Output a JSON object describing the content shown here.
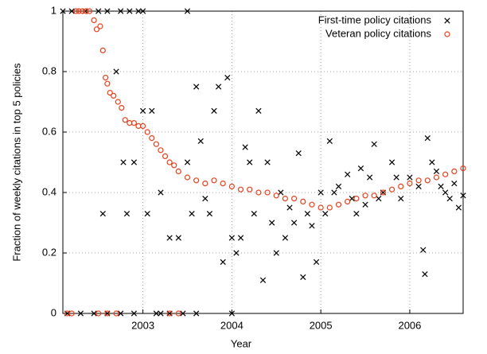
{
  "chart_data": {
    "type": "scatter",
    "x_label": "Year",
    "y_label": "Fraction of weekly citations in top 5 policies",
    "xlim": [
      2002.1,
      2006.6
    ],
    "xticks": [
      2003,
      2004,
      2005,
      2006
    ],
    "ylim": [
      0,
      1
    ],
    "yticks": [
      0,
      0.2,
      0.4,
      0.6,
      0.8,
      1
    ],
    "grid": true,
    "legend": "top-right",
    "series": [
      {
        "name": "First-time policy citations",
        "color": "#000000",
        "marker": "x",
        "x": [
          2002.1,
          2002.2,
          2002.35,
          2002.5,
          2002.6,
          2002.75,
          2002.85,
          2002.95,
          2003.0,
          2003.5,
          2002.15,
          2002.3,
          2002.45,
          2002.6,
          2002.75,
          2002.9,
          2003.15,
          2003.2,
          2003.3,
          2003.45,
          2003.6,
          2004.0,
          2002.55,
          2002.7,
          2002.78,
          2002.82,
          2002.9,
          2003.0,
          2003.05,
          2003.1,
          2003.2,
          2003.3,
          2003.4,
          2003.5,
          2003.55,
          2003.6,
          2003.65,
          2003.7,
          2003.75,
          2003.8,
          2003.85,
          2003.9,
          2003.95,
          2004.0,
          2004.05,
          2004.1,
          2004.15,
          2004.2,
          2004.25,
          2004.3,
          2004.35,
          2004.4,
          2004.45,
          2004.5,
          2004.55,
          2004.6,
          2004.65,
          2004.7,
          2004.75,
          2004.8,
          2004.85,
          2004.9,
          2004.95,
          2005.0,
          2005.05,
          2005.1,
          2005.15,
          2005.2,
          2005.3,
          2005.35,
          2005.4,
          2005.45,
          2005.5,
          2005.55,
          2005.6,
          2005.65,
          2005.7,
          2005.8,
          2005.85,
          2005.9,
          2006.0,
          2006.1,
          2006.15,
          2006.17,
          2006.2,
          2006.25,
          2006.3,
          2006.35,
          2006.4,
          2006.45,
          2006.5,
          2006.55,
          2006.6
        ],
        "values": [
          1,
          1,
          1,
          1,
          1,
          1,
          1,
          1,
          1,
          1,
          0,
          0,
          0,
          0,
          0,
          0,
          0,
          0,
          0,
          0,
          0,
          0,
          0.33,
          0.8,
          0.5,
          0.33,
          0.5,
          0.67,
          0.33,
          0.67,
          0.4,
          0.25,
          0.25,
          0.5,
          0.33,
          0.75,
          0.57,
          0.38,
          0.33,
          0.67,
          0.75,
          0.17,
          0.78,
          0.25,
          0.2,
          0.25,
          0.55,
          0.5,
          0.33,
          0.67,
          0.11,
          0.5,
          0.3,
          0.2,
          0.4,
          0.25,
          0.35,
          0.3,
          0.53,
          0.12,
          0.33,
          0.29,
          0.17,
          0.4,
          0.33,
          0.57,
          0.4,
          0.42,
          0.46,
          0.38,
          0.33,
          0.48,
          0.36,
          0.45,
          0.56,
          0.38,
          0.4,
          0.5,
          0.45,
          0.38,
          0.45,
          0.42,
          0.21,
          0.13,
          0.58,
          0.5,
          0.47,
          0.42,
          0.4,
          0.38,
          0.43,
          0.35,
          0.39
        ]
      },
      {
        "name": "Veteran policy citations",
        "color": "#e8401c",
        "marker": "circle",
        "x": [
          2002.15,
          2002.2,
          2002.5,
          2002.6,
          2002.7,
          2003.3,
          2003.4,
          2002.25,
          2002.28,
          2002.32,
          2002.36,
          2002.4,
          2002.45,
          2002.48,
          2002.52,
          2002.55,
          2002.58,
          2002.6,
          2002.63,
          2002.67,
          2002.72,
          2002.76,
          2002.8,
          2002.85,
          2002.9,
          2002.95,
          2003.0,
          2003.05,
          2003.1,
          2003.15,
          2003.2,
          2003.25,
          2003.3,
          2003.35,
          2003.4,
          2003.5,
          2003.6,
          2003.7,
          2003.8,
          2003.9,
          2004.0,
          2004.1,
          2004.2,
          2004.3,
          2004.4,
          2004.5,
          2004.6,
          2004.7,
          2004.8,
          2004.9,
          2005.0,
          2005.1,
          2005.2,
          2005.3,
          2005.4,
          2005.5,
          2005.6,
          2005.7,
          2005.8,
          2005.9,
          2006.0,
          2006.1,
          2006.2,
          2006.3,
          2006.4,
          2006.5,
          2006.6
        ],
        "values": [
          0,
          0,
          0,
          0,
          0,
          0,
          0,
          1,
          1,
          1,
          1,
          1,
          0.97,
          0.94,
          0.95,
          0.87,
          0.78,
          0.76,
          0.73,
          0.72,
          0.7,
          0.68,
          0.64,
          0.63,
          0.63,
          0.62,
          0.62,
          0.6,
          0.58,
          0.56,
          0.54,
          0.52,
          0.5,
          0.49,
          0.47,
          0.45,
          0.44,
          0.43,
          0.44,
          0.43,
          0.42,
          0.41,
          0.41,
          0.4,
          0.4,
          0.39,
          0.38,
          0.38,
          0.37,
          0.36,
          0.35,
          0.35,
          0.36,
          0.37,
          0.38,
          0.39,
          0.39,
          0.4,
          0.41,
          0.42,
          0.43,
          0.44,
          0.44,
          0.45,
          0.46,
          0.47,
          0.48
        ]
      }
    ]
  }
}
